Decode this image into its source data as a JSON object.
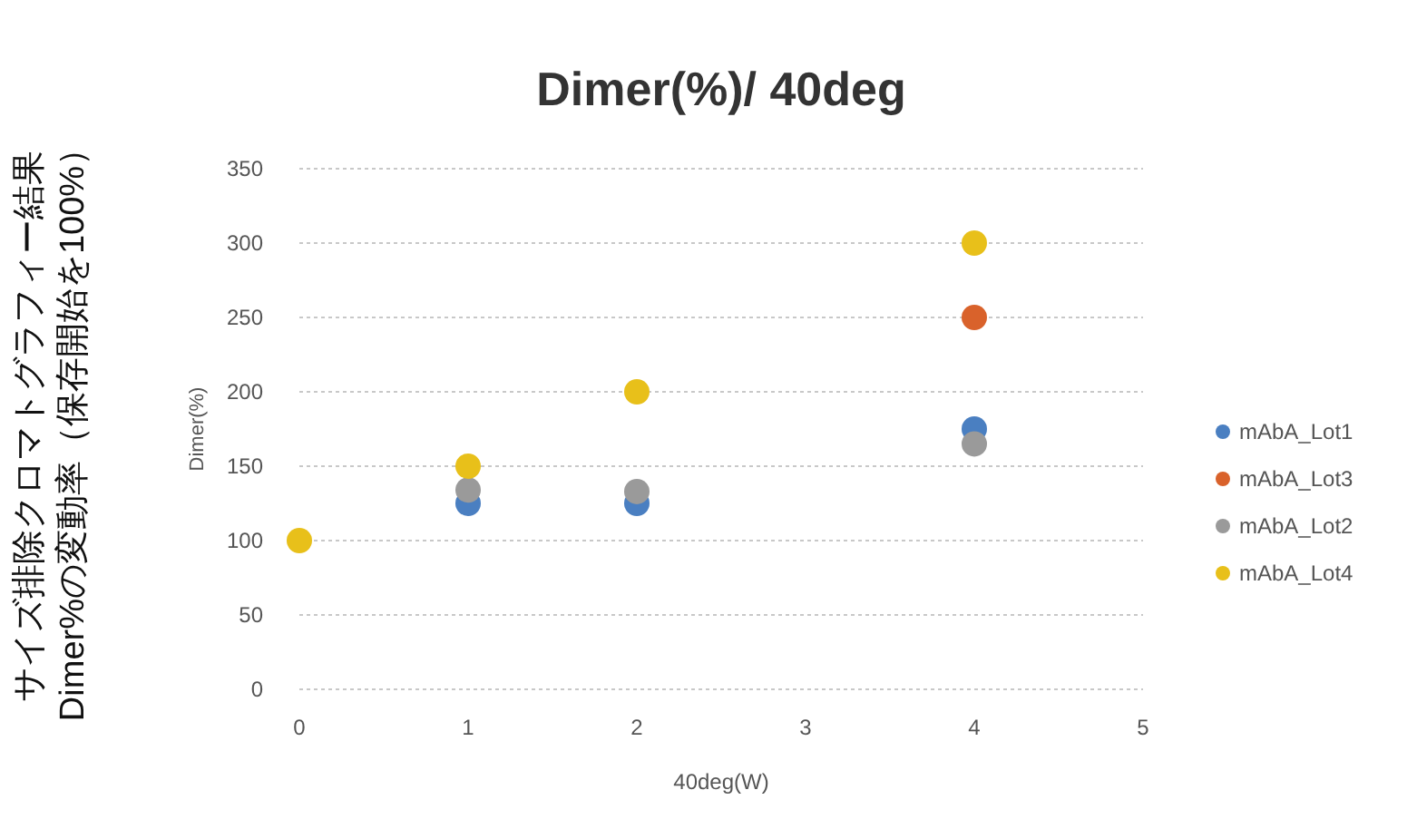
{
  "chart_data": {
    "type": "scatter",
    "title": "Dimer(%)/ 40deg",
    "xlabel": "40deg(W)",
    "ylabel": "Dimer(%)",
    "annotations": [
      "サイズ排除クロマトグラフィー結果\nDimer%の変動率（保存開始を100%）"
    ],
    "x": [
      0,
      1,
      2,
      4
    ],
    "series": [
      {
        "name": "mAbA_Lot1",
        "color": "#4a7fc1",
        "values": [
          null,
          125,
          125,
          175
        ]
      },
      {
        "name": "mAbA_Lot3",
        "color": "#d9622b",
        "values": [
          null,
          null,
          null,
          250
        ]
      },
      {
        "name": "mAbA_Lot2",
        "color": "#9a9a9a",
        "values": [
          null,
          134,
          133,
          165
        ]
      },
      {
        "name": "mAbA_Lot4",
        "color": "#e8c01a",
        "values": [
          100,
          150,
          200,
          300
        ]
      }
    ],
    "xlim": [
      0,
      5
    ],
    "xticks": [
      0,
      1,
      2,
      3,
      4,
      5
    ],
    "ylim": [
      0,
      350
    ],
    "yticks": [
      0,
      50,
      100,
      150,
      200,
      250,
      300,
      350
    ],
    "grid": "y",
    "legend": "right",
    "marker": "circle"
  }
}
